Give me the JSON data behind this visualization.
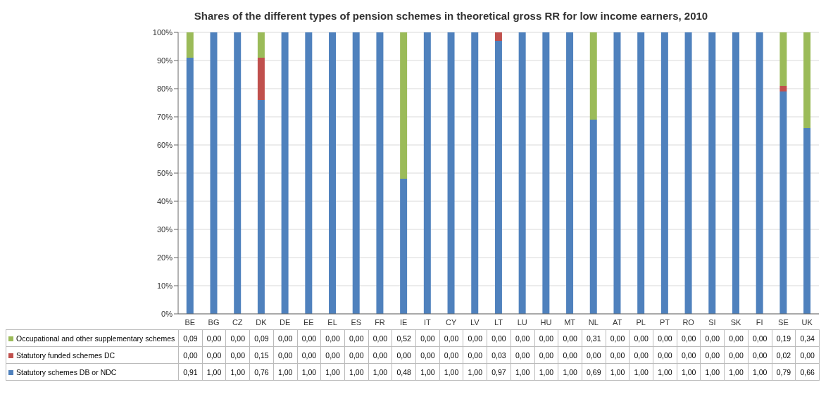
{
  "chart_data": {
    "type": "bar",
    "stacked": true,
    "title": "Shares of the different types of pension schemes in theoretical gross RR for low income earners, 2010",
    "categories": [
      "BE",
      "BG",
      "CZ",
      "DK",
      "DE",
      "EE",
      "EL",
      "ES",
      "FR",
      "IE",
      "IT",
      "CY",
      "LV",
      "LT",
      "LU",
      "HU",
      "MT",
      "NL",
      "AT",
      "PL",
      "PT",
      "RO",
      "SI",
      "SK",
      "FI",
      "SE",
      "UK"
    ],
    "series": [
      {
        "name": "Statutory schemes DB or NDC",
        "color": "#4f81bd",
        "values": [
          0.91,
          1,
          1,
          0.76,
          1,
          1,
          1,
          1,
          1,
          0.48,
          1,
          1,
          1,
          0.97,
          1,
          1,
          1,
          0.69,
          1,
          1,
          1,
          1,
          1,
          1,
          1,
          0.79,
          0.66
        ],
        "value_labels": [
          "0,91",
          "1,00",
          "1,00",
          "0,76",
          "1,00",
          "1,00",
          "1,00",
          "1,00",
          "1,00",
          "0,48",
          "1,00",
          "1,00",
          "1,00",
          "0,97",
          "1,00",
          "1,00",
          "1,00",
          "0,69",
          "1,00",
          "1,00",
          "1,00",
          "1,00",
          "1,00",
          "1,00",
          "1,00",
          "0,79",
          "0,66"
        ]
      },
      {
        "name": "Statutory funded schemes DC",
        "color": "#c0504d",
        "values": [
          0,
          0,
          0,
          0.15,
          0,
          0,
          0,
          0,
          0,
          0,
          0,
          0,
          0,
          0.03,
          0,
          0,
          0,
          0,
          0,
          0,
          0,
          0,
          0,
          0,
          0,
          0.02,
          0
        ],
        "value_labels": [
          "0,00",
          "0,00",
          "0,00",
          "0,15",
          "0,00",
          "0,00",
          "0,00",
          "0,00",
          "0,00",
          "0,00",
          "0,00",
          "0,00",
          "0,00",
          "0,03",
          "0,00",
          "0,00",
          "0,00",
          "0,00",
          "0,00",
          "0,00",
          "0,00",
          "0,00",
          "0,00",
          "0,00",
          "0,00",
          "0,02",
          "0,00"
        ]
      },
      {
        "name": "Occupational and other supplementary schemes",
        "color": "#9bbb59",
        "values": [
          0.09,
          0,
          0,
          0.09,
          0,
          0,
          0,
          0,
          0,
          0.52,
          0,
          0,
          0,
          0,
          0,
          0,
          0,
          0.31,
          0,
          0,
          0,
          0,
          0,
          0,
          0,
          0.19,
          0.34
        ],
        "value_labels": [
          "0,09",
          "0,00",
          "0,00",
          "0,09",
          "0,00",
          "0,00",
          "0,00",
          "0,00",
          "0,00",
          "0,52",
          "0,00",
          "0,00",
          "0,00",
          "0,00",
          "0,00",
          "0,00",
          "0,00",
          "0,31",
          "0,00",
          "0,00",
          "0,00",
          "0,00",
          "0,00",
          "0,00",
          "0,00",
          "0,19",
          "0,34"
        ]
      }
    ],
    "ylim": [
      0,
      1
    ],
    "yticks": [
      {
        "value": 0,
        "label": "0%"
      },
      {
        "value": 0.1,
        "label": "10%"
      },
      {
        "value": 0.2,
        "label": "20%"
      },
      {
        "value": 0.3,
        "label": "30%"
      },
      {
        "value": 0.4,
        "label": "40%"
      },
      {
        "value": 0.5,
        "label": "50%"
      },
      {
        "value": 0.6,
        "label": "60%"
      },
      {
        "value": 0.7,
        "label": "70%"
      },
      {
        "value": 0.8,
        "label": "80%"
      },
      {
        "value": 0.9,
        "label": "90%"
      },
      {
        "value": 1,
        "label": "100%"
      }
    ],
    "grid": "y",
    "legend": "bottom left"
  }
}
